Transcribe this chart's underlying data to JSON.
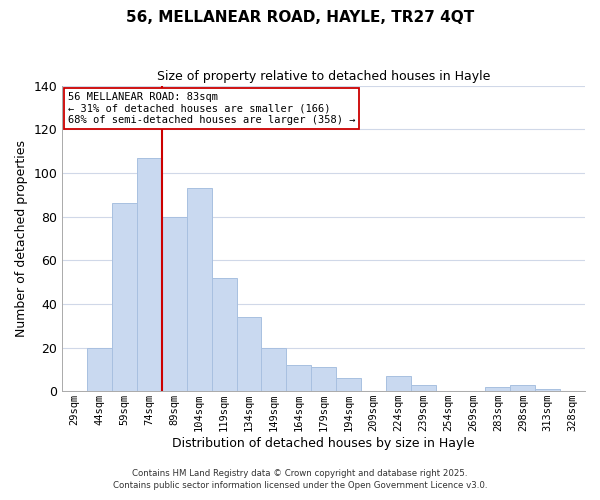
{
  "title": "56, MELLANEAR ROAD, HAYLE, TR27 4QT",
  "subtitle": "Size of property relative to detached houses in Hayle",
  "xlabel": "Distribution of detached houses by size in Hayle",
  "ylabel": "Number of detached properties",
  "bar_color": "#c9d9f0",
  "bar_edgecolor": "#a8c0e0",
  "categories": [
    "29sqm",
    "44sqm",
    "59sqm",
    "74sqm",
    "89sqm",
    "104sqm",
    "119sqm",
    "134sqm",
    "149sqm",
    "164sqm",
    "179sqm",
    "194sqm",
    "209sqm",
    "224sqm",
    "239sqm",
    "254sqm",
    "269sqm",
    "283sqm",
    "298sqm",
    "313sqm",
    "328sqm"
  ],
  "values": [
    0,
    20,
    86,
    107,
    80,
    93,
    52,
    34,
    20,
    12,
    11,
    6,
    0,
    7,
    3,
    0,
    0,
    2,
    3,
    1,
    0
  ],
  "ylim": [
    0,
    140
  ],
  "yticks": [
    0,
    20,
    40,
    60,
    80,
    100,
    120,
    140
  ],
  "vline_color": "#cc0000",
  "vline_index": 3.5,
  "annotation_title": "56 MELLANEAR ROAD: 83sqm",
  "annotation_line1": "← 31% of detached houses are smaller (166)",
  "annotation_line2": "68% of semi-detached houses are larger (358) →",
  "annotation_box_color": "#ffffff",
  "annotation_box_edgecolor": "#cc0000",
  "footer1": "Contains HM Land Registry data © Crown copyright and database right 2025.",
  "footer2": "Contains public sector information licensed under the Open Government Licence v3.0.",
  "background_color": "#ffffff",
  "grid_color": "#d0d8e8"
}
